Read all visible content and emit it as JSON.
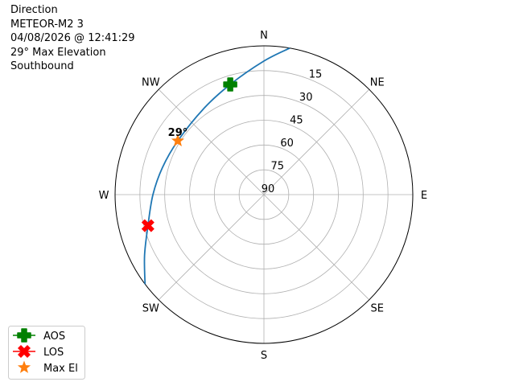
{
  "info": {
    "lines": [
      "Direction",
      "METEOR-M2 3",
      "04/08/2026 @ 12:41:29",
      "29° Max Elevation",
      "Southbound"
    ]
  },
  "chart_data": {
    "type": "polar",
    "theta_direction": "clockwise",
    "theta_zero": "N",
    "compass_labels": [
      {
        "label": "N",
        "az": 0
      },
      {
        "label": "NE",
        "az": 45
      },
      {
        "label": "E",
        "az": 90
      },
      {
        "label": "SE",
        "az": 135
      },
      {
        "label": "S",
        "az": 180
      },
      {
        "label": "SW",
        "az": 225
      },
      {
        "label": "W",
        "az": 270
      },
      {
        "label": "NW",
        "az": 315
      }
    ],
    "radial_axis": "elevation",
    "radial_range": [
      90,
      0
    ],
    "radial_ticks": [
      "15",
      "30",
      "45",
      "60",
      "75",
      "90"
    ],
    "radial_tick_values": [
      15,
      30,
      45,
      60,
      75,
      90
    ],
    "grid": true,
    "track": {
      "color": "#1f77b4",
      "points": [
        [
          10,
          0
        ],
        [
          0,
          9.2
        ],
        [
          343,
          20.3
        ],
        [
          325,
          26.5
        ],
        [
          302,
          28.6
        ],
        [
          285,
          26.5
        ],
        [
          270,
          22.9
        ],
        [
          255,
          17.4
        ],
        [
          243,
          9
        ],
        [
          233,
          0
        ]
      ]
    },
    "markers": [
      {
        "name": "AOS",
        "az": 343,
        "el": 20.3,
        "color": "#008000",
        "shape": "plus"
      },
      {
        "name": "LOS",
        "az": 255,
        "el": 17.4,
        "color": "#ff0000",
        "shape": "x"
      },
      {
        "name": "Max El",
        "az": 302,
        "el": 28.6,
        "color": "#ff7f0e",
        "shape": "star"
      }
    ],
    "annotations": [
      {
        "text": "29°",
        "az": 302,
        "el": 28.6
      }
    ],
    "legend": {
      "placement": "bottom-left",
      "entries": [
        "AOS",
        "LOS",
        "Max El"
      ]
    }
  }
}
